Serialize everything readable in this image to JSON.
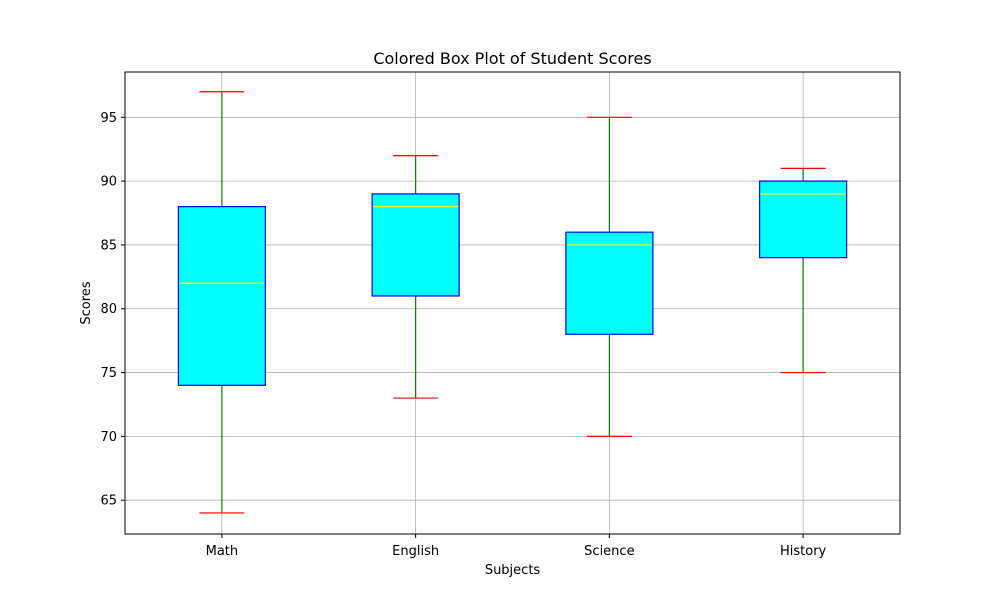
{
  "chart_data": {
    "type": "box",
    "title": "Colored Box Plot of Student Scores",
    "xlabel": "Subjects",
    "ylabel": "Scores",
    "categories": [
      "Math",
      "English",
      "Science",
      "History"
    ],
    "boxes": [
      {
        "category": "Math",
        "whisker_low": 64,
        "q1": 74,
        "median": 82,
        "q3": 88,
        "whisker_high": 97
      },
      {
        "category": "English",
        "whisker_low": 73,
        "q1": 81,
        "median": 88,
        "q3": 89,
        "whisker_high": 92
      },
      {
        "category": "Science",
        "whisker_low": 70,
        "q1": 78,
        "median": 85,
        "q3": 86,
        "whisker_high": 95
      },
      {
        "category": "History",
        "whisker_low": 75,
        "q1": 84,
        "median": 89,
        "q3": 90,
        "whisker_high": 91
      }
    ],
    "ylim": [
      62.35,
      98.55
    ],
    "yticks": [
      65,
      70,
      75,
      80,
      85,
      90,
      95
    ],
    "grid": true,
    "colors": {
      "box_fill": "#00ffff",
      "box_edge": "#0000ff",
      "median": "#ffff00",
      "whisker": "#008000",
      "cap": "#ff0000",
      "grid": "#b0b0b0"
    }
  }
}
